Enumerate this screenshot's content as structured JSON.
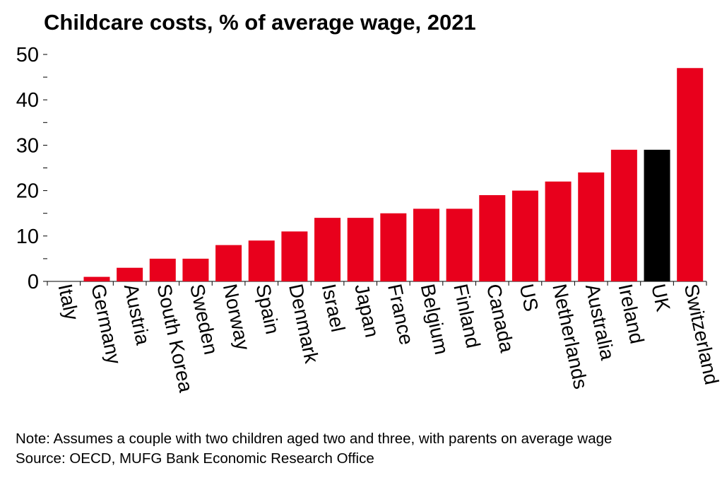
{
  "chart_data": {
    "type": "bar",
    "title": "Childcare costs, % of average wage, 2021",
    "xlabel": "",
    "ylabel": "",
    "ylim": [
      0,
      50
    ],
    "yticks": [
      0,
      10,
      20,
      30,
      40,
      50
    ],
    "grid": false,
    "legend": "none",
    "categories": [
      "Italy",
      "Germany",
      "Austria",
      "South Korea",
      "Sweden",
      "Norway",
      "Spain",
      "Denmark",
      "Israel",
      "Japan",
      "France",
      "Belgium",
      "Finland",
      "Canada",
      "US",
      "Netherlands",
      "Australia",
      "Ireland",
      "UK",
      "Switzerland"
    ],
    "values": [
      0,
      1,
      3,
      5,
      5,
      8,
      9,
      11,
      14,
      14,
      15,
      16,
      16,
      19,
      20,
      22,
      24,
      29,
      29,
      47
    ],
    "highlight": "UK",
    "colors": {
      "bar": "#e8001c",
      "highlight": "#000000",
      "axis": "#000000"
    }
  },
  "footnotes": {
    "note": "Note: Assumes a couple with two children aged two and three, with parents on average wage",
    "source": "Source: OECD, MUFG Bank Economic Research Office"
  }
}
